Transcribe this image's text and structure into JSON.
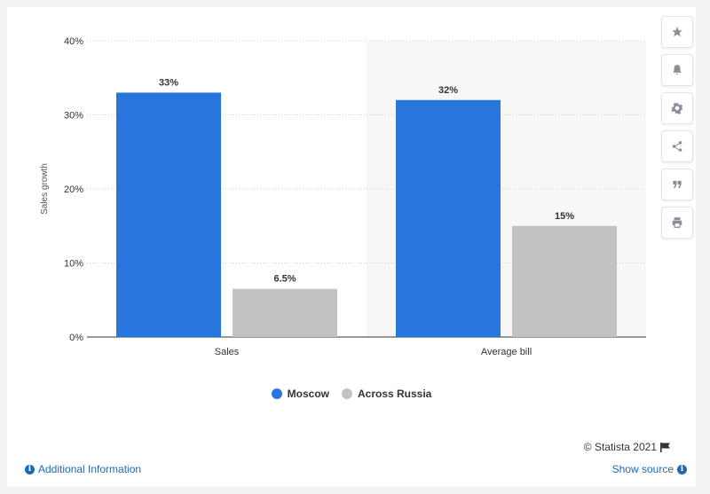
{
  "chart_data": {
    "type": "bar",
    "categories": [
      "Sales",
      "Average bill"
    ],
    "series": [
      {
        "name": "Moscow",
        "values": [
          33,
          32
        ],
        "labels": [
          "33%",
          "32%"
        ],
        "color": "#2876dd"
      },
      {
        "name": "Across Russia",
        "values": [
          6.5,
          15
        ],
        "labels": [
          "6.5%",
          "15%"
        ],
        "color": "#c2c2c2"
      }
    ],
    "ylabel": "Sales growth",
    "ylim": [
      0,
      40
    ],
    "yticks": [
      0,
      10,
      20,
      30,
      40
    ],
    "ytick_labels": [
      "0%",
      "10%",
      "20%",
      "30%",
      "40%"
    ],
    "grid": true,
    "legend_position": "bottom-center"
  },
  "sidebar": {
    "icons": [
      "star-icon",
      "bell-icon",
      "gear-icon",
      "share-icon",
      "quote-icon",
      "print-icon"
    ]
  },
  "footer": {
    "credits": "© Statista 2021",
    "additional_info": "Additional Information",
    "show_source": "Show source"
  }
}
